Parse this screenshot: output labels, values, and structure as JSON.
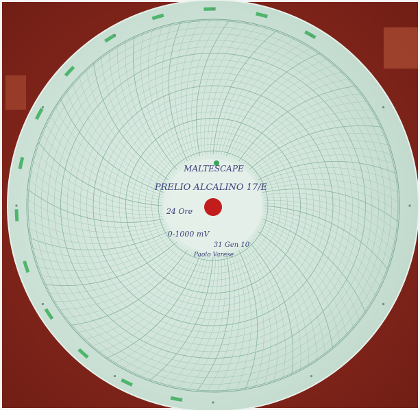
{
  "label": {
    "lines": [
      "MALTESCAPE",
      "PRELIO ALCALINO 17/E",
      "24 Ore",
      "0-1000 mV",
      "31 Gen 10",
      "Paolo Varese"
    ]
  }
}
